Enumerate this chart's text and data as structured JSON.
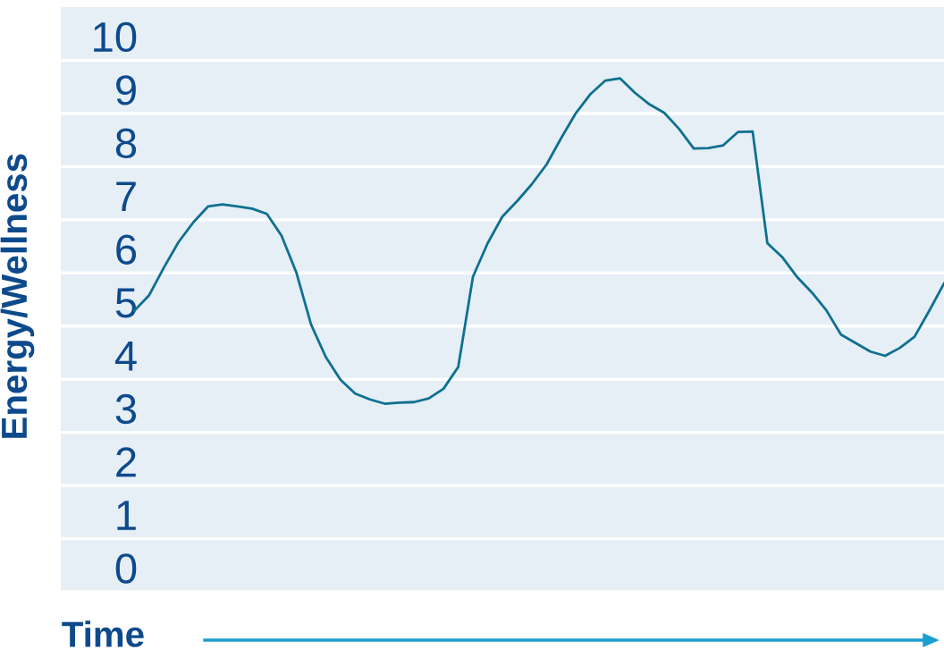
{
  "chart_data": {
    "type": "line",
    "xlabel": "Time",
    "ylabel": "Energy/Wellness",
    "categories": [
      null,
      null,
      null,
      null,
      null,
      null,
      null,
      null,
      null,
      null,
      null,
      null,
      null,
      null,
      null,
      null,
      null,
      null,
      null,
      null,
      null,
      null,
      null,
      null,
      null,
      null,
      null,
      null,
      null,
      null,
      null,
      null,
      null,
      null,
      null,
      null,
      null,
      null,
      null,
      null,
      null,
      null,
      null,
      null,
      null,
      null,
      null,
      null,
      null,
      null,
      null,
      null,
      null,
      null,
      null,
      null,
      null,
      null,
      null,
      null,
      null
    ],
    "series": [
      {
        "color": "#0e7090",
        "values": [
          null,
          null,
          null,
          null,
          null,
          5.29,
          5.58,
          6.1,
          6.58,
          6.95,
          7.25,
          7.29,
          7.25,
          7.21,
          7.11,
          6.7,
          6.01,
          5.03,
          4.42,
          3.99,
          3.73,
          3.62,
          3.54,
          3.56,
          3.57,
          3.64,
          3.82,
          4.23,
          5.93,
          6.56,
          7.06,
          7.35,
          7.67,
          8.04,
          8.54,
          9.01,
          9.37,
          9.62,
          9.66,
          9.39,
          9.17,
          9.01,
          8.71,
          8.34,
          8.35,
          8.4,
          8.65,
          8.66,
          6.56,
          6.3,
          5.93,
          5.64,
          5.3,
          4.84,
          4.68,
          4.52,
          4.44,
          4.59,
          4.8,
          5.29,
          5.8
        ]
      }
    ],
    "ylim": [
      0,
      11
    ],
    "yticks": [
      0,
      1,
      2,
      3,
      4,
      5,
      6,
      7,
      8,
      9,
      10
    ],
    "grid": "y",
    "tick_labels": "y",
    "line_style": "solid",
    "marker": "none"
  }
}
